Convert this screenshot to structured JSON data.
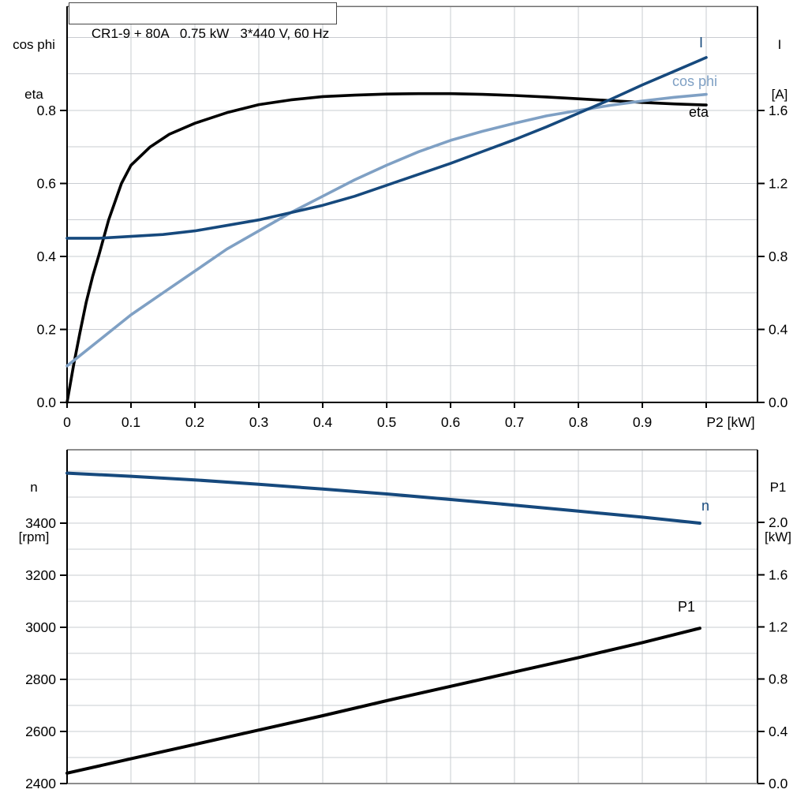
{
  "title": "CR1-9 + 80A   0.75 kW   3*440 V, 60 Hz",
  "colors": {
    "black": "#000000",
    "dark_blue": "#16497D",
    "light_blue": "#7FA0C4",
    "grid": "#C9CCD1",
    "frame_gray": "#8D8D8D",
    "axis_black": "#000000"
  },
  "chart_data": [
    {
      "type": "line",
      "title": "CR1-9 + 80A   0.75 kW   3*440 V, 60 Hz",
      "x_axis": {
        "label": "P2 [kW]",
        "range": [
          0,
          1.0802
        ],
        "ticks": [
          {
            "label": "0",
            "v": 0
          },
          {
            "label": "0.1",
            "v": 0.1
          },
          {
            "label": "0.2",
            "v": 0.2
          },
          {
            "label": "0.3",
            "v": 0.3
          },
          {
            "label": "0.4",
            "v": 0.4
          },
          {
            "label": "0.5",
            "v": 0.5
          },
          {
            "label": "0.6",
            "v": 0.6
          },
          {
            "label": "0.7",
            "v": 0.7
          },
          {
            "label": "0.8",
            "v": 0.8
          },
          {
            "label": "0.9",
            "v": 0.9
          }
        ]
      },
      "left_axis": {
        "title": [
          "cos phi",
          "eta"
        ],
        "range": [
          0,
          1.0854
        ],
        "ticks": [
          {
            "label": "0.0",
            "v": 0.0
          },
          {
            "label": "0.2",
            "v": 0.2
          },
          {
            "label": "0.4",
            "v": 0.4
          },
          {
            "label": "0.6",
            "v": 0.6
          },
          {
            "label": "0.8",
            "v": 0.8
          }
        ]
      },
      "right_axis": {
        "title": [
          "I",
          "[A]"
        ],
        "range": [
          0,
          2.1708
        ],
        "ticks": [
          {
            "label": "0.0",
            "v": 0.0
          },
          {
            "label": "0.4",
            "v": 0.4
          },
          {
            "label": "0.8",
            "v": 0.8
          },
          {
            "label": "1.2",
            "v": 1.2
          },
          {
            "label": "1.6",
            "v": 1.6
          }
        ]
      },
      "series": [
        {
          "name": "eta",
          "axis": "left",
          "color": "black",
          "x": [
            0,
            0.01,
            0.02,
            0.03,
            0.04,
            0.05,
            0.065,
            0.085,
            0.1,
            0.13,
            0.16,
            0.2,
            0.25,
            0.3,
            0.35,
            0.4,
            0.45,
            0.5,
            0.55,
            0.6,
            0.65,
            0.7,
            0.75,
            0.8,
            0.85,
            0.9,
            0.95,
            1.0
          ],
          "y": [
            0,
            0.1,
            0.19,
            0.275,
            0.345,
            0.405,
            0.5,
            0.6,
            0.65,
            0.7,
            0.735,
            0.765,
            0.794,
            0.816,
            0.829,
            0.838,
            0.842,
            0.845,
            0.846,
            0.846,
            0.844,
            0.841,
            0.837,
            0.832,
            0.827,
            0.822,
            0.818,
            0.815
          ]
        },
        {
          "name": "cos phi",
          "axis": "left",
          "color": "light_blue",
          "x": [
            0,
            0.05,
            0.1,
            0.15,
            0.2,
            0.25,
            0.3,
            0.35,
            0.4,
            0.45,
            0.5,
            0.55,
            0.6,
            0.65,
            0.7,
            0.75,
            0.8,
            0.85,
            0.9,
            0.95,
            1.0
          ],
          "y": [
            0.1,
            0.17,
            0.24,
            0.3,
            0.36,
            0.42,
            0.47,
            0.52,
            0.565,
            0.61,
            0.65,
            0.687,
            0.718,
            0.743,
            0.765,
            0.785,
            0.8,
            0.814,
            0.826,
            0.836,
            0.844
          ]
        },
        {
          "name": "I",
          "axis": "right",
          "color": "dark_blue",
          "x": [
            0,
            0.05,
            0.1,
            0.15,
            0.2,
            0.25,
            0.3,
            0.35,
            0.4,
            0.45,
            0.5,
            0.55,
            0.6,
            0.65,
            0.7,
            0.75,
            0.8,
            0.85,
            0.9,
            0.95,
            1.0
          ],
          "y": [
            0.9,
            0.9,
            0.91,
            0.92,
            0.94,
            0.97,
            1.0,
            1.04,
            1.08,
            1.13,
            1.19,
            1.25,
            1.31,
            1.375,
            1.44,
            1.51,
            1.585,
            1.66,
            1.74,
            1.815,
            1.89
          ]
        }
      ]
    },
    {
      "type": "line",
      "x_axis": {
        "label": "",
        "range": [
          0,
          1.0802
        ],
        "ticks": []
      },
      "left_axis": {
        "title": [
          "n",
          "[rpm]"
        ],
        "range": [
          2400,
          3681.8
        ],
        "ticks": [
          {
            "label": "2400",
            "v": 2400
          },
          {
            "label": "2600",
            "v": 2600
          },
          {
            "label": "2800",
            "v": 2800
          },
          {
            "label": "3000",
            "v": 3000
          },
          {
            "label": "3200",
            "v": 3200
          },
          {
            "label": "3400",
            "v": 3400
          }
        ]
      },
      "right_axis": {
        "title": [
          "P1",
          "[kW]"
        ],
        "range": [
          0,
          2.5575
        ],
        "ticks": [
          {
            "label": "0.0",
            "v": 0.0
          },
          {
            "label": "0.4",
            "v": 0.4
          },
          {
            "label": "0.8",
            "v": 0.8
          },
          {
            "label": "1.2",
            "v": 1.2
          },
          {
            "label": "1.6",
            "v": 1.6
          },
          {
            "label": "2.0",
            "v": 2.0
          }
        ]
      },
      "series": [
        {
          "name": "n",
          "axis": "left",
          "color": "dark_blue",
          "x": [
            0,
            0.1,
            0.2,
            0.3,
            0.4,
            0.5,
            0.6,
            0.7,
            0.8,
            0.9,
            0.99
          ],
          "y": [
            3592,
            3580,
            3566,
            3549,
            3531,
            3512,
            3491,
            3469,
            3446,
            3423,
            3400
          ]
        },
        {
          "name": "P1",
          "axis": "right",
          "color": "black",
          "x": [
            0,
            0.1,
            0.2,
            0.3,
            0.4,
            0.5,
            0.6,
            0.7,
            0.8,
            0.9,
            0.99
          ],
          "y": [
            0.08,
            0.19,
            0.3,
            0.41,
            0.52,
            0.635,
            0.745,
            0.855,
            0.965,
            1.08,
            1.19
          ]
        }
      ]
    }
  ]
}
